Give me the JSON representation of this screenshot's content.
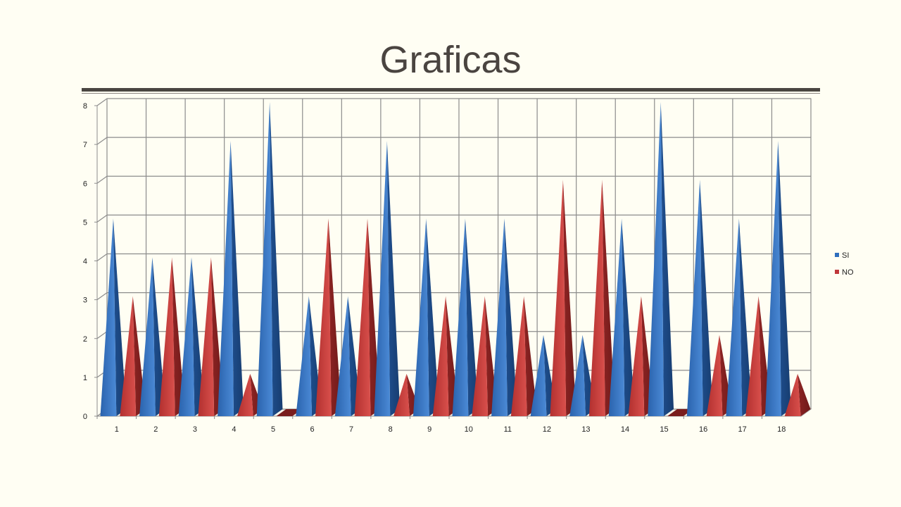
{
  "slide": {
    "title": "Graficas"
  },
  "chart_data": {
    "type": "bar",
    "title": "",
    "xlabel": "",
    "ylabel": "",
    "ylim": [
      0,
      8
    ],
    "y_ticks": [
      0,
      1,
      2,
      3,
      4,
      5,
      6,
      7,
      8
    ],
    "grid": true,
    "legend_position": "right",
    "categories": [
      "1",
      "2",
      "3",
      "4",
      "5",
      "6",
      "7",
      "8",
      "9",
      "10",
      "11",
      "12",
      "13",
      "14",
      "15",
      "16",
      "17",
      "18"
    ],
    "series": [
      {
        "name": "SI",
        "color": "#2f6fbd",
        "values": [
          5,
          4,
          4,
          7,
          8,
          3,
          3,
          7,
          5,
          5,
          5,
          2,
          2,
          5,
          8,
          6,
          5,
          7
        ]
      },
      {
        "name": "NO",
        "color": "#c0383a",
        "values": [
          3,
          4,
          4,
          1,
          0,
          5,
          5,
          1,
          3,
          3,
          3,
          6,
          6,
          3,
          0,
          2,
          3,
          1
        ]
      }
    ]
  }
}
